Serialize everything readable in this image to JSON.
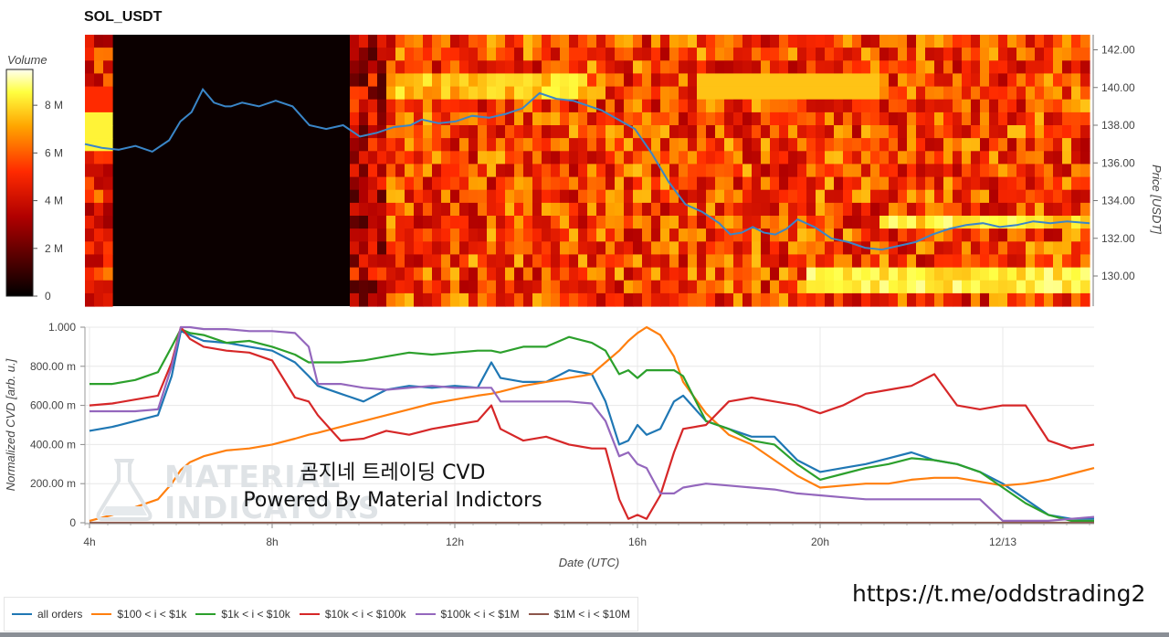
{
  "title": "SOL_USDT",
  "overlay": {
    "line1": "곰지네 트레이딩 CVD",
    "line2": "Powered By Material Indictors",
    "url": "https://t.me/oddstrading2"
  },
  "watermark": [
    "MATERIAL",
    "INDICATORS"
  ],
  "colors": {
    "heat_low": "#000000",
    "heat_mid": "#e8000b",
    "heat_high": "#fffff0",
    "price_line": "#3a86c8",
    "grid": "#e8e8e8"
  },
  "legend": [
    {
      "label": "all orders",
      "color": "#1f77b4"
    },
    {
      "label": "$100 < i < $1k",
      "color": "#ff7f0e"
    },
    {
      "label": "$1k < i < $10k",
      "color": "#2ca02c"
    },
    {
      "label": "$10k < i < $100k",
      "color": "#d62728"
    },
    {
      "label": "$100k < i < $1M",
      "color": "#9467bd"
    },
    {
      "label": "$1M < i < $10M",
      "color": "#8c564b"
    }
  ],
  "chart_data": [
    {
      "type": "heatmap",
      "title": "SOL_USDT",
      "ylabel": "Price [USDT]",
      "colorbar_label": "Volume",
      "colorbar_ticks": [
        "0",
        "2 M",
        "4 M",
        "6 M",
        "8 M"
      ],
      "colorbar_range": [
        0,
        9.5
      ],
      "yticks": [
        "130.00",
        "132.00",
        "134.00",
        "136.00",
        "138.00",
        "140.00",
        "142.00"
      ],
      "ylim": [
        128.4,
        142.8
      ],
      "xlim": [
        3.6,
        21.5
      ],
      "price_series": {
        "x": [
          3.6,
          3.9,
          4.2,
          4.5,
          4.8,
          5.1,
          5.3,
          5.5,
          5.7,
          5.9,
          6.1,
          6.2,
          6.4,
          6.7,
          7.0,
          7.3,
          7.6,
          7.9,
          8.2,
          8.5,
          8.8,
          9.1,
          9.4,
          9.6,
          9.9,
          10.2,
          10.5,
          10.8,
          11.1,
          11.4,
          11.7,
          12.0,
          12.3,
          12.6,
          12.8,
          13.1,
          13.4,
          13.7,
          14.0,
          14.3,
          14.6,
          14.9,
          15.1,
          15.3,
          15.5,
          15.7,
          15.9,
          16.1,
          16.3,
          16.6,
          16.9,
          17.2,
          17.5,
          17.8,
          18.1,
          18.4,
          18.7,
          19.0,
          19.3,
          19.6,
          19.9,
          20.2,
          20.5,
          20.8,
          21.1,
          21.5
        ],
        "y": [
          137.0,
          136.8,
          136.7,
          136.9,
          136.6,
          137.2,
          138.2,
          138.7,
          139.9,
          139.2,
          139.0,
          139.0,
          139.2,
          139.0,
          139.3,
          139.0,
          138.0,
          137.8,
          138.0,
          137.4,
          137.6,
          137.9,
          138.0,
          138.3,
          138.1,
          138.2,
          138.5,
          138.4,
          138.6,
          138.9,
          139.7,
          139.4,
          139.3,
          139.0,
          138.8,
          138.3,
          137.8,
          136.5,
          135.0,
          133.8,
          133.4,
          132.8,
          132.2,
          132.3,
          132.6,
          132.3,
          132.2,
          132.5,
          133.0,
          132.6,
          132.0,
          131.8,
          131.5,
          131.4,
          131.6,
          131.8,
          132.2,
          132.5,
          132.7,
          132.8,
          132.6,
          132.7,
          132.9,
          132.8,
          132.9,
          132.8
        ]
      }
    },
    {
      "type": "line",
      "xlabel": "Date (UTC)",
      "ylabel": "Normalized CVD [arb. u.]",
      "xticks": [
        "4h",
        "8h",
        "12h",
        "16h",
        "20h",
        "12/13"
      ],
      "ytick_labels": [
        "0",
        "200.00 m",
        "400.00 m",
        "600.00 m",
        "800.00 m",
        "1.000"
      ],
      "xlim": [
        3.9,
        26.0
      ],
      "ylim": [
        0,
        1
      ],
      "grid": true,
      "x": [
        4.0,
        4.5,
        5.0,
        5.5,
        5.8,
        6.0,
        6.2,
        6.5,
        7.0,
        7.5,
        8.0,
        8.5,
        8.8,
        9.0,
        9.5,
        10.0,
        10.5,
        11.0,
        11.5,
        12.0,
        12.5,
        12.8,
        13.0,
        13.5,
        14.0,
        14.5,
        15.0,
        15.3,
        15.6,
        15.8,
        16.0,
        16.2,
        16.5,
        16.8,
        17.0,
        17.5,
        18.0,
        18.5,
        19.0,
        19.5,
        20.0,
        20.5,
        21.0,
        21.5,
        22.0,
        22.5,
        23.0,
        23.5,
        24.0,
        24.5,
        25.0,
        25.5,
        26.0
      ],
      "series": [
        {
          "name": "all orders",
          "values": [
            0.47,
            0.49,
            0.52,
            0.55,
            0.75,
            0.98,
            0.96,
            0.93,
            0.92,
            0.9,
            0.88,
            0.82,
            0.75,
            0.7,
            0.66,
            0.62,
            0.68,
            0.7,
            0.69,
            0.7,
            0.69,
            0.82,
            0.74,
            0.72,
            0.72,
            0.78,
            0.76,
            0.62,
            0.4,
            0.42,
            0.5,
            0.45,
            0.48,
            0.62,
            0.65,
            0.52,
            0.48,
            0.44,
            0.44,
            0.32,
            0.26,
            0.28,
            0.3,
            0.33,
            0.36,
            0.32,
            0.3,
            0.26,
            0.2,
            0.12,
            0.04,
            0.02,
            0.02
          ]
        },
        {
          "name": "$100 < i < $1k",
          "values": [
            0.01,
            0.04,
            0.08,
            0.12,
            0.2,
            0.27,
            0.31,
            0.34,
            0.37,
            0.38,
            0.4,
            0.43,
            0.45,
            0.46,
            0.49,
            0.52,
            0.55,
            0.58,
            0.61,
            0.63,
            0.65,
            0.66,
            0.67,
            0.7,
            0.72,
            0.74,
            0.76,
            0.82,
            0.88,
            0.93,
            0.97,
            1.0,
            0.96,
            0.85,
            0.72,
            0.56,
            0.45,
            0.4,
            0.32,
            0.24,
            0.18,
            0.19,
            0.2,
            0.2,
            0.22,
            0.23,
            0.23,
            0.21,
            0.19,
            0.2,
            0.22,
            0.25,
            0.28
          ]
        },
        {
          "name": "$1k < i < $10k",
          "values": [
            0.71,
            0.71,
            0.73,
            0.77,
            0.9,
            0.99,
            0.97,
            0.96,
            0.92,
            0.93,
            0.9,
            0.86,
            0.82,
            0.82,
            0.82,
            0.83,
            0.85,
            0.87,
            0.86,
            0.87,
            0.88,
            0.88,
            0.87,
            0.9,
            0.9,
            0.95,
            0.92,
            0.88,
            0.76,
            0.78,
            0.74,
            0.78,
            0.78,
            0.78,
            0.75,
            0.52,
            0.48,
            0.42,
            0.4,
            0.3,
            0.22,
            0.25,
            0.28,
            0.3,
            0.33,
            0.32,
            0.3,
            0.26,
            0.18,
            0.1,
            0.04,
            0.01,
            0.01
          ]
        },
        {
          "name": "$10k < i < $100k",
          "values": [
            0.6,
            0.61,
            0.63,
            0.65,
            0.82,
            1.0,
            0.94,
            0.9,
            0.88,
            0.87,
            0.83,
            0.64,
            0.62,
            0.55,
            0.42,
            0.43,
            0.47,
            0.45,
            0.48,
            0.5,
            0.52,
            0.6,
            0.48,
            0.42,
            0.44,
            0.4,
            0.38,
            0.38,
            0.12,
            0.02,
            0.04,
            0.02,
            0.14,
            0.36,
            0.48,
            0.5,
            0.62,
            0.64,
            0.62,
            0.6,
            0.56,
            0.6,
            0.66,
            0.68,
            0.7,
            0.76,
            0.6,
            0.58,
            0.6,
            0.6,
            0.42,
            0.38,
            0.4
          ]
        },
        {
          "name": "$100k < i < $1M",
          "values": [
            0.57,
            0.57,
            0.57,
            0.58,
            0.8,
            1.0,
            1.0,
            0.99,
            0.99,
            0.98,
            0.98,
            0.97,
            0.9,
            0.71,
            0.71,
            0.69,
            0.68,
            0.69,
            0.7,
            0.69,
            0.69,
            0.69,
            0.62,
            0.62,
            0.62,
            0.62,
            0.61,
            0.52,
            0.34,
            0.36,
            0.3,
            0.28,
            0.15,
            0.15,
            0.18,
            0.2,
            0.19,
            0.18,
            0.17,
            0.15,
            0.14,
            0.13,
            0.12,
            0.12,
            0.12,
            0.12,
            0.12,
            0.12,
            0.01,
            0.01,
            0.01,
            0.02,
            0.03
          ]
        },
        {
          "name": "$1M < i < $10M",
          "values": [
            0,
            0,
            0,
            0,
            0,
            0,
            0,
            0,
            0,
            0,
            0,
            0,
            0,
            0,
            0,
            0,
            0,
            0,
            0,
            0,
            0,
            0,
            0,
            0,
            0,
            0,
            0,
            0,
            0,
            0,
            0,
            0,
            0,
            0,
            0,
            0,
            0,
            0,
            0,
            0,
            0,
            0,
            0,
            0,
            0,
            0,
            0,
            0,
            0,
            0,
            0,
            0,
            0
          ]
        }
      ]
    }
  ]
}
